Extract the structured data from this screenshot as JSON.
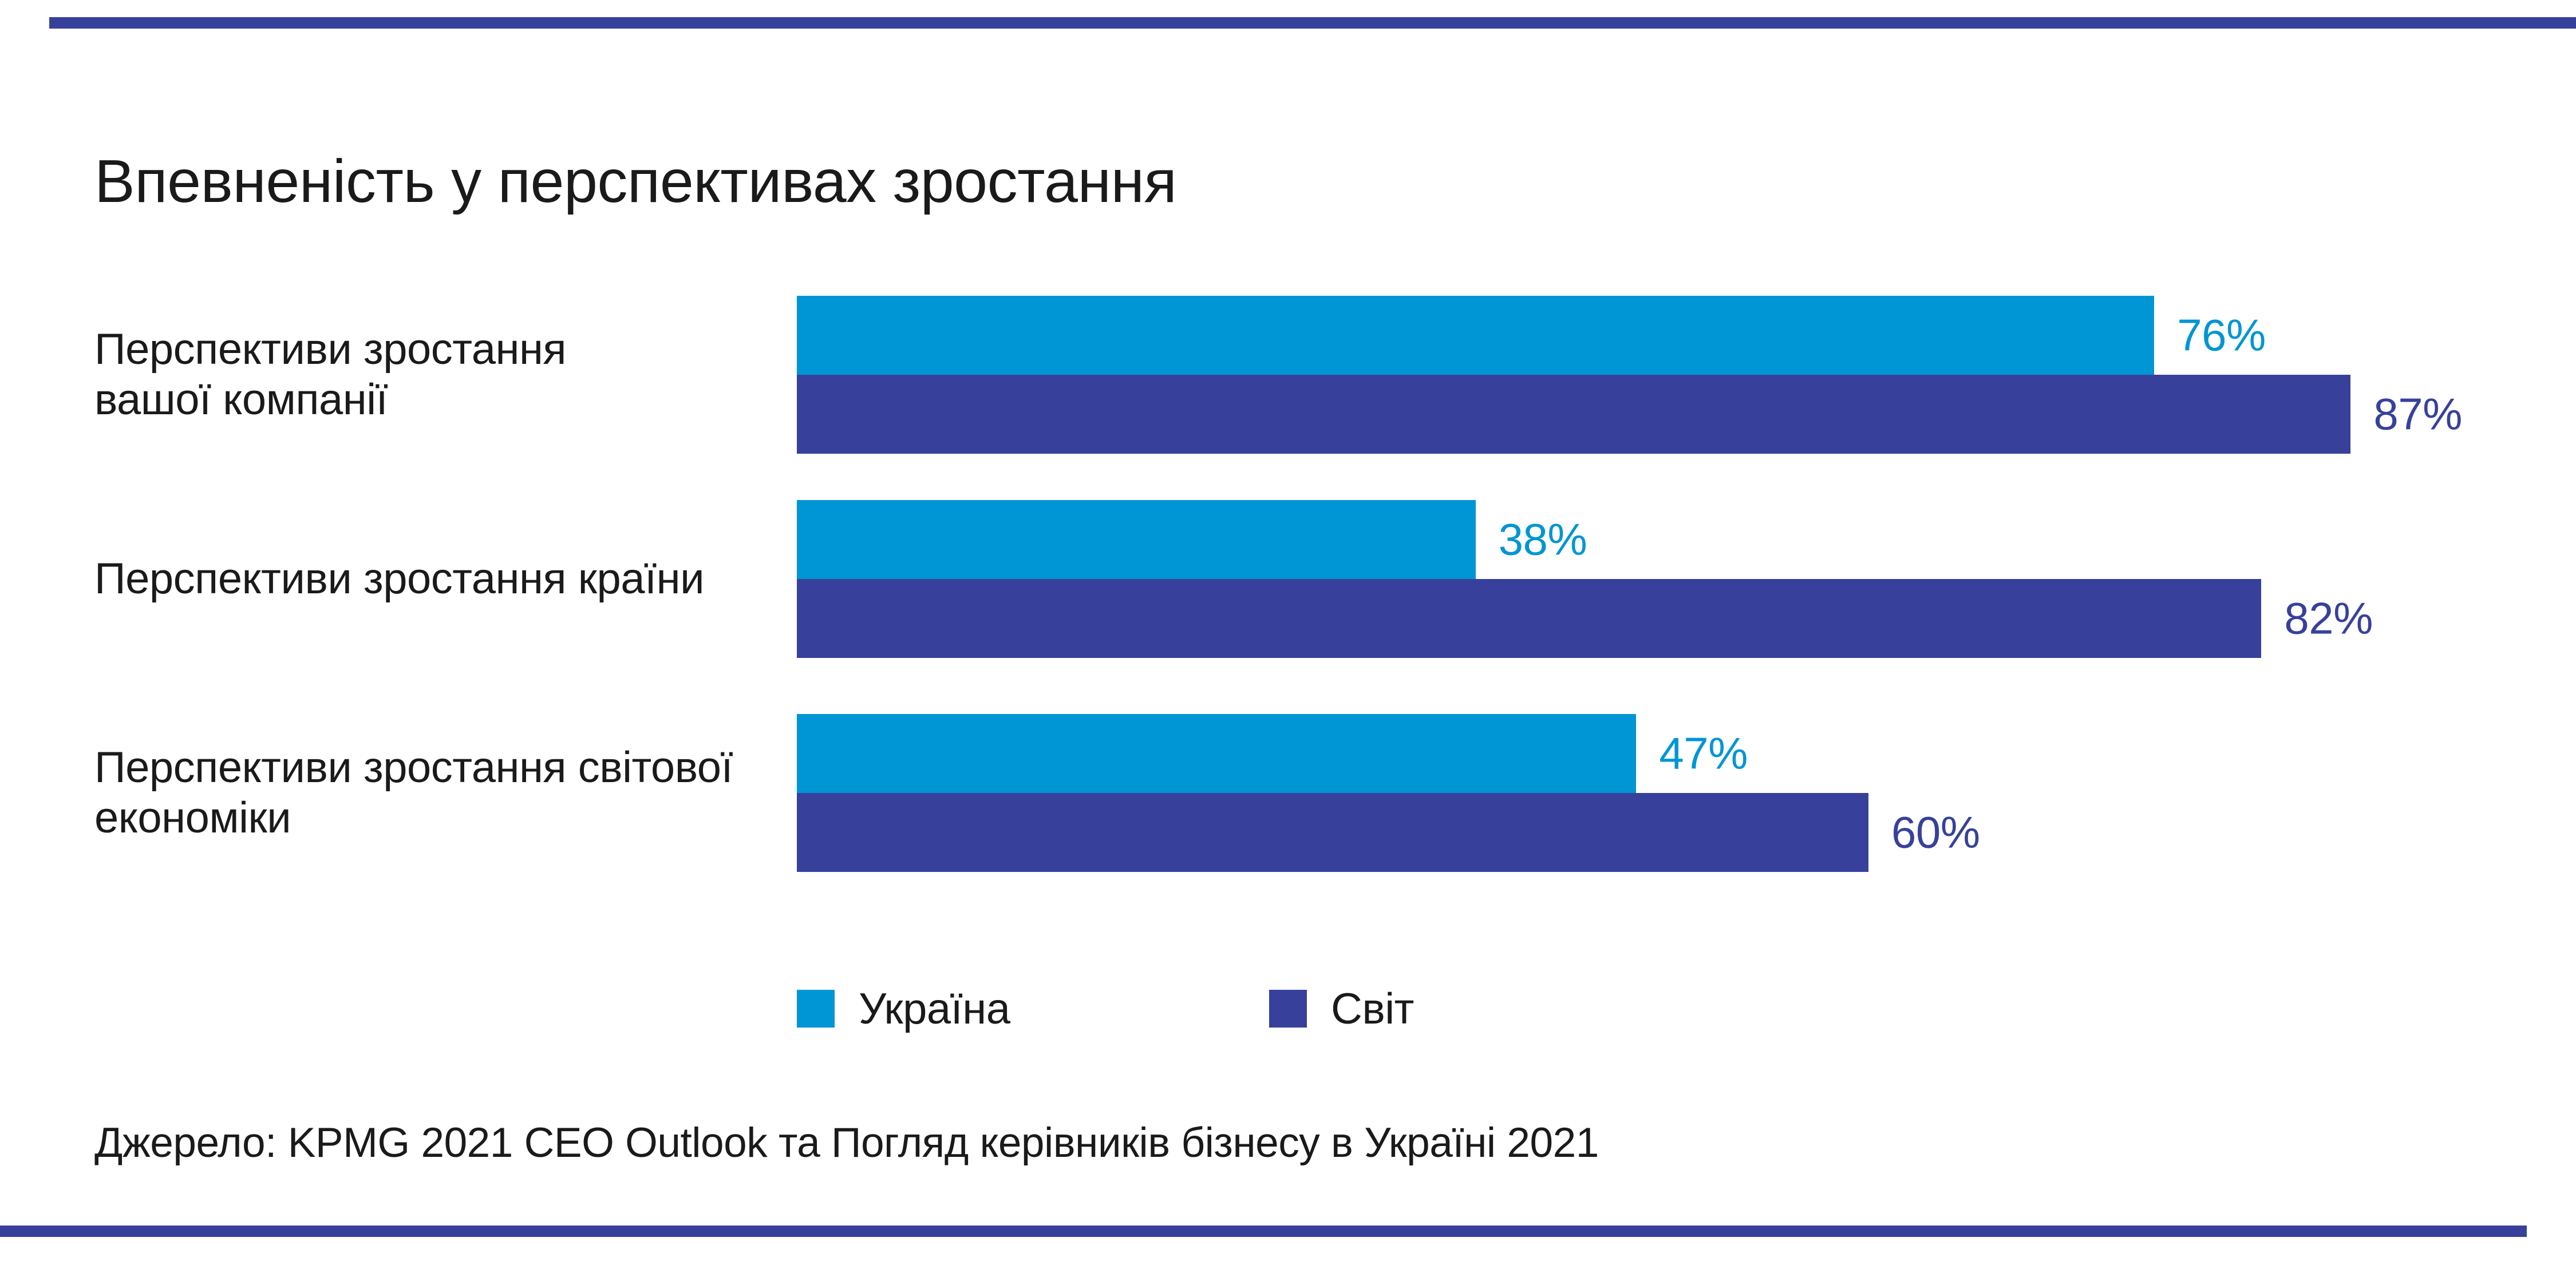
{
  "title": "Впевненість у перспективах зростання",
  "source": "Джерело: KPMG 2021 CEO Outlook та Погляд керівників бізнесу в Україні 2021",
  "colors": {
    "ukraine": "#0095D5",
    "world": "#37419B",
    "text": "#1A1A1A",
    "background": "#FFFFFF"
  },
  "legend": {
    "items": [
      {
        "label": "Україна",
        "color": "#0095D5"
      },
      {
        "label": "Світ",
        "color": "#37419B"
      }
    ]
  },
  "rows": [
    {
      "label_lines": [
        "Перспективи зростання",
        "вашої компанії"
      ],
      "ukraine_display": "76%",
      "world_display": "87%"
    },
    {
      "label_lines": [
        "Перспективи зростання країни"
      ],
      "ukraine_display": "38%",
      "world_display": "82%"
    },
    {
      "label_lines": [
        "Перспективи зростання світової",
        "економіки"
      ],
      "ukraine_display": "47%",
      "world_display": "60%"
    }
  ],
  "chart_data": {
    "type": "bar",
    "orientation": "horizontal",
    "title": "Впевненість у перспективах зростання",
    "categories": [
      "Перспективи зростання вашої компанії",
      "Перспективи зростання країни",
      "Перспективи зростання світової економіки"
    ],
    "series": [
      {
        "name": "Україна",
        "color": "#0095D5",
        "values": [
          76,
          38,
          47
        ]
      },
      {
        "name": "Світ",
        "color": "#37419B",
        "values": [
          87,
          82,
          60
        ]
      }
    ],
    "value_suffix": "%",
    "xlim": [
      0,
      100
    ],
    "grid": false,
    "data_labels": true,
    "legend_position": "bottom",
    "source": "Джерело: KPMG 2021 CEO Outlook та Погляд керівників бізнесу в Україні 2021"
  }
}
